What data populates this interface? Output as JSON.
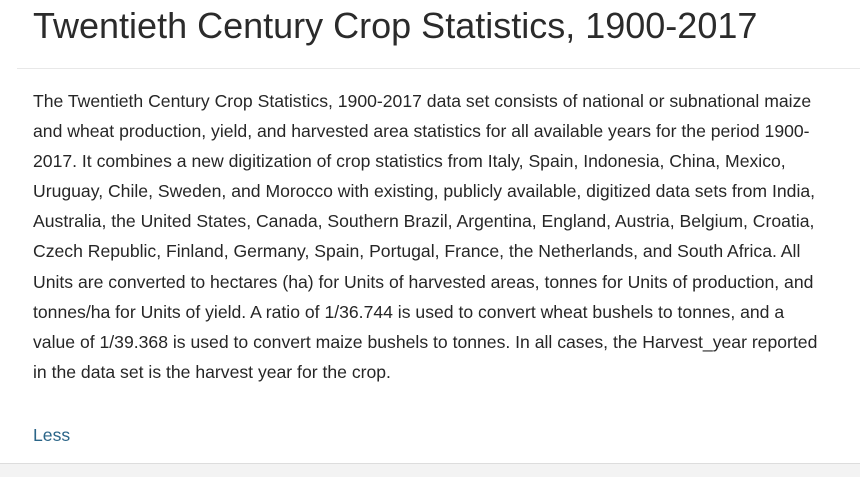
{
  "dataset": {
    "title": "Twentieth Century Crop Statistics, 1900-2017",
    "description": "The Twentieth Century Crop Statistics, 1900-2017 data set consists of national or subnational maize and wheat production, yield, and harvested area statistics for all available years for the period 1900-2017. It combines a new digitization of crop statistics from Italy, Spain, Indonesia, China, Mexico, Uruguay, Chile, Sweden, and Morocco with existing, publicly available, digitized data sets from India, Australia, the United States, Canada, Southern Brazil, Argentina, England, Austria, Belgium, Croatia, Czech Republic, Finland, Germany, Spain, Portugal, France, the Netherlands, and South Africa. All Units are converted to hectares (ha) for Units of harvested areas, tonnes for Units of production, and tonnes/ha for Units of yield. A ratio of 1/36.744 is used to convert wheat bushels to tonnes, and a value of 1/39.368 is used to convert maize bushels to tonnes. In all cases, the Harvest_year reported in the data set is the harvest year for the crop.",
    "toggle_label": "Less"
  },
  "colors": {
    "title_text": "#2b2b2b",
    "body_text": "#262626",
    "link": "#2b6588",
    "divider": "#e8e8e8"
  }
}
